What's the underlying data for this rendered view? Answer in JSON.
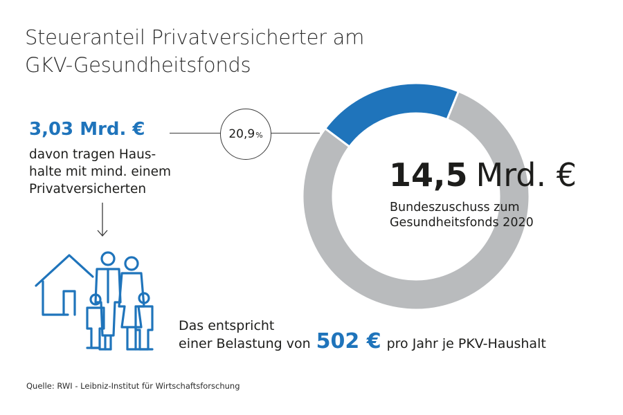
{
  "title": {
    "line1": "Steueranteil Privatversicherter am",
    "line2": "GKV-Gesundheitsfonds"
  },
  "left": {
    "amount": "3,03 Mrd. €",
    "desc_line1": "davon tragen Haus-",
    "desc_line2": "halte mit mind. einem",
    "desc_line3": "Privatversicherten"
  },
  "callout": {
    "value": "20,9",
    "unit": "%"
  },
  "center": {
    "amount_num": "14,5",
    "amount_unit": "Mrd. €",
    "desc_line1": "Bundeszuschuss zum",
    "desc_line2": "Gesundheitsfonds 2020"
  },
  "bottom": {
    "line1": "Das entspricht",
    "line2_prefix": "einer Belastung von",
    "line2_value": "502 €",
    "line2_suffix": "pro Jahr je PKV-Haushalt"
  },
  "source": "Quelle: RWI - Leibniz-Institut für Wirtschaftsforschung",
  "colors": {
    "accent": "#1f74bb",
    "rest": "#b9bbbd",
    "text": "#1d1d1b"
  },
  "icons": [
    "down-arrow-icon",
    "house-icon",
    "family-icon"
  ],
  "chart_data": {
    "type": "pie",
    "style": "donut",
    "total_label": "14,5 Mrd. €",
    "slices": [
      {
        "label": "3,03 Mrd. €",
        "value": 20.9,
        "color": "#1f74bb"
      },
      {
        "value": 79.1,
        "color": "#b9bbbd"
      }
    ]
  }
}
